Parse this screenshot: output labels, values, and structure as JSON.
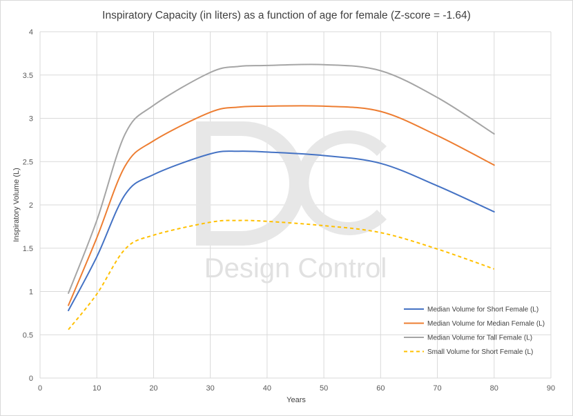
{
  "chart_data": {
    "type": "line",
    "title": "Inspiratory Capacity (in liters) as a function of age for female (Z-score = -1.64)",
    "xlabel": "Years",
    "ylabel": "Inspiratory Volume (L)",
    "xlim": [
      0,
      90
    ],
    "ylim": [
      0,
      4
    ],
    "x_ticks": [
      "0",
      "10",
      "20",
      "30",
      "40",
      "50",
      "60",
      "70",
      "80",
      "90"
    ],
    "y_ticks": [
      "0",
      "0.5",
      "1",
      "1.5",
      "2",
      "2.5",
      "3",
      "3.5",
      "4"
    ],
    "grid": true,
    "legend_position": "bottom-right",
    "x": [
      5,
      10,
      15,
      20,
      30,
      35,
      40,
      50,
      60,
      70,
      80
    ],
    "series": [
      {
        "name": "Median Volume for Short Female (L)",
        "color": "#4472c4",
        "dash": "solid",
        "values": [
          0.78,
          1.4,
          2.12,
          2.35,
          2.59,
          2.62,
          2.61,
          2.57,
          2.48,
          2.22,
          1.92
        ]
      },
      {
        "name": "Median Volume for Median Female (L)",
        "color": "#ed7d31",
        "dash": "solid",
        "values": [
          0.84,
          1.62,
          2.45,
          2.74,
          3.07,
          3.13,
          3.14,
          3.14,
          3.08,
          2.8,
          2.46
        ]
      },
      {
        "name": "Median Volume for Tall Female (L)",
        "color": "#a5a5a5",
        "dash": "solid",
        "values": [
          0.98,
          1.82,
          2.82,
          3.15,
          3.53,
          3.6,
          3.61,
          3.62,
          3.55,
          3.24,
          2.82
        ]
      },
      {
        "name": "Small Volume for Short Female (L)",
        "color": "#ffc000",
        "dash": "dashed",
        "values": [
          0.56,
          0.97,
          1.49,
          1.65,
          1.8,
          1.82,
          1.81,
          1.76,
          1.68,
          1.49,
          1.26
        ]
      }
    ],
    "watermark": {
      "letters": "DC",
      "text": "Design Control"
    }
  }
}
